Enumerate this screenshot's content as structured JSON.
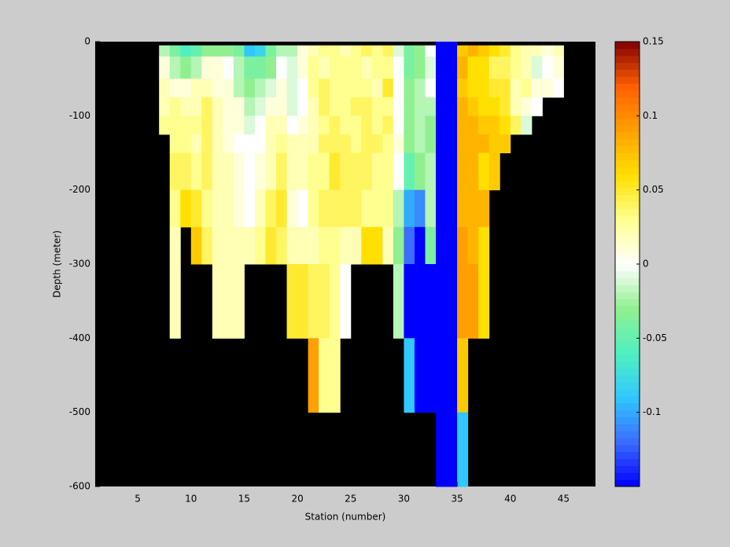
{
  "chart_data": {
    "type": "heatmap",
    "xlabel": "Station (number)",
    "ylabel": "Depth (meter)",
    "x": [
      7,
      8,
      9,
      10,
      11,
      12,
      13,
      14,
      15,
      16,
      17,
      18,
      19,
      20,
      21,
      22,
      23,
      24,
      25,
      26,
      27,
      28,
      29,
      30,
      31,
      32,
      33,
      34,
      35,
      36,
      37,
      38,
      39,
      40,
      41,
      42,
      43,
      44,
      45
    ],
    "y": [
      0,
      -5,
      -20,
      -50,
      -75,
      -100,
      -125,
      -150,
      -200,
      -250,
      -300,
      -400,
      -500,
      -600
    ],
    "values": [
      [
        null,
        -0.02,
        0.01,
        0.02,
        0.02,
        0.03,
        null,
        null,
        null,
        null,
        null,
        null,
        null
      ],
      [
        null,
        -0.04,
        -0.02,
        0.01,
        0.03,
        0.03,
        0.03,
        0.04,
        0.03,
        0.02,
        0.02,
        null,
        null
      ],
      [
        null,
        -0.06,
        -0.03,
        0.01,
        0.02,
        0.03,
        0.03,
        0.04,
        0.06,
        null,
        null,
        null,
        null
      ],
      [
        null,
        -0.05,
        -0.02,
        0.02,
        0.02,
        0.03,
        0.02,
        0.03,
        0.05,
        0.07,
        null,
        null,
        null
      ],
      [
        null,
        -0.03,
        0.01,
        0.02,
        0.04,
        0.04,
        0.04,
        0.04,
        0.03,
        0.04,
        null,
        null,
        null
      ],
      [
        null,
        -0.03,
        0.01,
        0.01,
        0.02,
        0.02,
        0.02,
        0.02,
        0.02,
        0.02,
        0.02,
        null,
        null
      ],
      [
        null,
        -0.03,
        0,
        0.01,
        0.01,
        0.01,
        0.01,
        0.02,
        0.02,
        0.02,
        0.02,
        null,
        null
      ],
      [
        null,
        -0.04,
        -0.02,
        -0.02,
        0.01,
        0.01,
        0,
        0.01,
        0.01,
        0.02,
        0.02,
        null,
        null
      ],
      [
        null,
        -0.09,
        -0.04,
        -0.03,
        -0.02,
        -0.01,
        0,
        0,
        0,
        0.02,
        null,
        null,
        null
      ],
      [
        null,
        -0.08,
        -0.04,
        -0.02,
        -0.01,
        0,
        0,
        0.01,
        0.02,
        0.03,
        null,
        null,
        null
      ],
      [
        null,
        -0.04,
        -0.03,
        -0.01,
        0.01,
        0.02,
        0.02,
        0.02,
        0.04,
        0.05,
        null,
        null,
        null
      ],
      [
        null,
        -0.02,
        0,
        0.01,
        0.01,
        0.02,
        0.03,
        0.04,
        0.05,
        0.04,
        null,
        null,
        null
      ],
      [
        null,
        -0.02,
        -0.01,
        -0.01,
        -0.01,
        0,
        0.02,
        0.02,
        0.01,
        0.02,
        0.05,
        null,
        null
      ],
      [
        null,
        0.01,
        0.01,
        0,
        0,
        0.01,
        0.02,
        0.02,
        0,
        0.02,
        0.05,
        null,
        null
      ],
      [
        null,
        0.02,
        0.03,
        0.03,
        0.02,
        0.02,
        0.02,
        0.03,
        0.03,
        0.02,
        0.04,
        0.09,
        null
      ],
      [
        null,
        0.03,
        0.02,
        0.04,
        0.04,
        0.03,
        0.04,
        0.03,
        0.04,
        0.03,
        0.04,
        0.03,
        null
      ],
      [
        null,
        0.03,
        0.03,
        0.03,
        0.03,
        0.04,
        0.04,
        0.05,
        0.04,
        0.03,
        0.03,
        0.03,
        null
      ],
      [
        null,
        0.02,
        0.03,
        0.03,
        0.03,
        0.03,
        0.04,
        0.04,
        0.04,
        0.02,
        0,
        null,
        null
      ],
      [
        null,
        0.03,
        0.03,
        0.03,
        0.04,
        0.03,
        0.03,
        0.04,
        0.04,
        0.02,
        null,
        null,
        null
      ],
      [
        null,
        0.04,
        0.02,
        0.03,
        0.04,
        0.04,
        0.04,
        0.04,
        0.03,
        0.06,
        null,
        null,
        null
      ],
      [
        null,
        0.03,
        0.03,
        0.02,
        0.03,
        0.03,
        0.04,
        0.03,
        0.03,
        0.06,
        null,
        null,
        null
      ],
      [
        null,
        0.04,
        0.03,
        0.05,
        0.03,
        0.04,
        0.03,
        0.03,
        0.03,
        0.02,
        null,
        null,
        null
      ],
      [
        null,
        -0.01,
        0,
        0,
        0,
        0,
        0.01,
        0,
        -0.02,
        -0.03,
        -0.02,
        null,
        null
      ],
      [
        null,
        -0.04,
        -0.04,
        -0.03,
        -0.03,
        -0.03,
        -0.03,
        -0.05,
        -0.1,
        -0.12,
        -0.15,
        -0.09,
        null
      ],
      [
        null,
        -0.03,
        -0.03,
        -0.02,
        -0.02,
        -0.02,
        -0.02,
        -0.03,
        -0.11,
        -0.15,
        -0.15,
        -0.15,
        null
      ],
      [
        null,
        0,
        -0.01,
        0,
        -0.02,
        -0.03,
        -0.03,
        -0.02,
        -0.02,
        -0.04,
        -0.15,
        -0.15,
        null
      ],
      [
        -0.15,
        -0.15,
        -0.15,
        -0.15,
        -0.15,
        -0.15,
        -0.15,
        -0.15,
        -0.15,
        -0.15,
        -0.15,
        -0.15,
        -0.15
      ],
      [
        -0.15,
        -0.15,
        -0.15,
        -0.15,
        -0.15,
        -0.15,
        -0.15,
        -0.15,
        -0.15,
        -0.15,
        -0.15,
        -0.15,
        -0.15
      ],
      [
        null,
        0.07,
        0.08,
        0.07,
        0.08,
        0.08,
        0.08,
        0.08,
        0.08,
        0.09,
        0.09,
        0.07,
        -0.09
      ],
      [
        null,
        0.08,
        0.06,
        0.06,
        0.07,
        0.08,
        0.08,
        0.08,
        0.08,
        0.08,
        0.09,
        null,
        null
      ],
      [
        null,
        0.07,
        0.06,
        0.06,
        0.06,
        0.07,
        0.08,
        0.06,
        0.08,
        0.06,
        0.06,
        null,
        null
      ],
      [
        null,
        0.06,
        0.04,
        0.05,
        0.06,
        0.07,
        0.07,
        0.07,
        null,
        null,
        null,
        null,
        null
      ],
      [
        null,
        0.05,
        0.04,
        0.05,
        0.05,
        0.06,
        0.07,
        null,
        null,
        null,
        null,
        null,
        null
      ],
      [
        null,
        0.03,
        0.03,
        0.02,
        0.02,
        0.04,
        null,
        null,
        null,
        null,
        null,
        null,
        null
      ],
      [
        null,
        0.02,
        0.02,
        0.03,
        0.01,
        -0.01,
        null,
        null,
        null,
        null,
        null,
        null,
        null
      ],
      [
        null,
        0.02,
        -0.01,
        0.01,
        0,
        null,
        null,
        null,
        null,
        null,
        null,
        null,
        null
      ],
      [
        null,
        0.01,
        0,
        0.01,
        null,
        null,
        null,
        null,
        null,
        null,
        null,
        null,
        null
      ],
      [
        null,
        0.02,
        0.01,
        0,
        null,
        null,
        null,
        null,
        null,
        null,
        null,
        null,
        null
      ]
    ],
    "xlim": [
      1,
      48
    ],
    "xticks": [
      5,
      10,
      15,
      20,
      25,
      30,
      35,
      40,
      45
    ],
    "ylim": [
      -600,
      0
    ],
    "yticks": [
      -600,
      -500,
      -400,
      -300,
      -200,
      -100,
      0
    ],
    "clim": [
      -0.15,
      0.15
    ],
    "cticks": [
      -0.1,
      -0.05,
      0,
      0.05,
      0.1,
      0.15
    ],
    "colormap": [
      "#0000ff",
      "#3a6cff",
      "#30c8ff",
      "#50f0c0",
      "#90f090",
      "#ffffff",
      "#ffff90",
      "#ffe000",
      "#ffa000",
      "#ff6000",
      "#800000"
    ],
    "background": "#000000"
  }
}
